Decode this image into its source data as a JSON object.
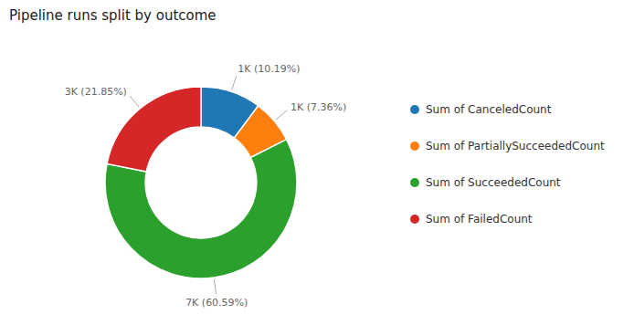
{
  "chart_data": {
    "type": "donut",
    "title": "Pipeline runs split by outcome",
    "categories": [
      "Sum of CanceledCount",
      "Sum of PartiallySucceededCount",
      "Sum of SucceededCount",
      "Sum of FailedCount"
    ],
    "values": [
      10.19,
      7.36,
      60.59,
      21.85
    ],
    "value_labels": [
      "1K (10.19%)",
      "1K (7.36%)",
      "7K (60.59%)",
      "3K (21.85%)"
    ],
    "legend": "right"
  }
}
